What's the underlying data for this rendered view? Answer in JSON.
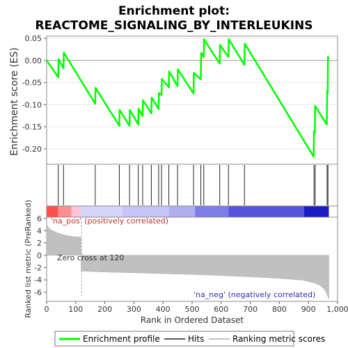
{
  "chart_data": {
    "type": "line",
    "title_line1": "Enrichment plot:",
    "title_line2": "REACTOME_SIGNALING_BY_INTERLEUKINS",
    "es_panel": {
      "ylabel": "Enrichment score (ES)",
      "ylim": [
        -0.235,
        0.055
      ],
      "yticks": [
        0.05,
        0.0,
        -0.05,
        -0.1,
        -0.15,
        -0.2
      ],
      "ytick_labels": [
        "0.05",
        "0.00",
        "-0.05",
        "-0.10",
        "-0.15",
        "-0.20"
      ],
      "zero_line": true,
      "series": [
        {
          "name": "Enrichment profile",
          "color": "#00ff00",
          "x": [
            0,
            40,
            41,
            58,
            59,
            167,
            168,
            250,
            251,
            285,
            286,
            315,
            316,
            330,
            331,
            360,
            361,
            385,
            386,
            395,
            396,
            420,
            421,
            450,
            451,
            505,
            506,
            530,
            531,
            540,
            541,
            595,
            596,
            625,
            626,
            680,
            681,
            918,
            919,
            922,
            923,
            963,
            964,
            966,
            967,
            970
          ],
          "y": [
            0.0,
            -0.038,
            0.003,
            -0.018,
            0.018,
            -0.098,
            -0.062,
            -0.148,
            -0.112,
            -0.148,
            -0.112,
            -0.145,
            -0.109,
            -0.126,
            -0.09,
            -0.12,
            -0.084,
            -0.11,
            -0.074,
            -0.078,
            -0.042,
            -0.061,
            -0.025,
            -0.058,
            -0.02,
            -0.075,
            -0.028,
            -0.043,
            0.017,
            0.008,
            0.048,
            -0.007,
            0.035,
            0.008,
            0.048,
            -0.01,
            0.038,
            -0.218,
            -0.16,
            -0.163,
            -0.103,
            -0.145,
            -0.07,
            -0.075,
            0.008,
            0.003
          ]
        }
      ]
    },
    "hits_panel": {
      "name": "Hits",
      "x": [
        40,
        58,
        167,
        250,
        285,
        315,
        330,
        360,
        385,
        395,
        420,
        450,
        505,
        530,
        540,
        595,
        625,
        680,
        919,
        923,
        964,
        967
      ]
    },
    "colorbar": {
      "segments": [
        {
          "x0": 0,
          "x1": 40,
          "color": "#ff5050"
        },
        {
          "x0": 40,
          "x1": 85,
          "color": "#ff8f8f"
        },
        {
          "x0": 85,
          "x1": 118,
          "color": "#ffc4d8"
        },
        {
          "x0": 118,
          "x1": 260,
          "color": "#d6d6fa"
        },
        {
          "x0": 260,
          "x1": 420,
          "color": "#c4c4f5"
        },
        {
          "x0": 420,
          "x1": 510,
          "color": "#aeaef0"
        },
        {
          "x0": 510,
          "x1": 625,
          "color": "#7c7ceb"
        },
        {
          "x0": 625,
          "x1": 885,
          "color": "#5454dc"
        },
        {
          "x0": 885,
          "x1": 970,
          "color": "#1c1cc4"
        }
      ]
    },
    "rank_panel": {
      "ylabel": "Ranked list metric (PreRanked)",
      "ylim": [
        -7.5,
        6.2
      ],
      "yticks": [
        6,
        4,
        2,
        0,
        -2,
        -4,
        -6
      ],
      "ytick_labels": [
        "6",
        "4",
        "2",
        "0",
        "-2",
        "-4",
        "-6"
      ],
      "series": [
        {
          "name": "Ranking metric scores",
          "color": "#c0c0c0",
          "x": [
            0,
            2,
            10,
            20,
            40,
            60,
            80,
            100,
            118,
            119,
            130,
            200,
            300,
            400,
            500,
            600,
            700,
            800,
            880,
            920,
            940,
            950,
            960,
            965,
            970
          ],
          "y": [
            6.0,
            4.8,
            4.3,
            4.0,
            3.6,
            3.3,
            3.1,
            3.0,
            2.95,
            -2.55,
            -2.6,
            -2.72,
            -2.85,
            -2.98,
            -3.12,
            -3.3,
            -3.5,
            -3.75,
            -4.05,
            -4.5,
            -4.9,
            -5.3,
            -5.9,
            -6.5,
            -7.1
          ]
        }
      ],
      "zero_cross_label": "Zero cross at 120",
      "zero_cross_x": 120,
      "pos_label": "'na_pos' (positively correlated)",
      "neg_label": "'na_neg' (negatively correlated)"
    },
    "x_axis": {
      "label": "Rank in Ordered Dataset",
      "xlim": [
        0,
        1000
      ],
      "ticks": [
        0,
        100,
        200,
        300,
        400,
        500,
        600,
        700,
        800,
        900,
        1000
      ],
      "tick_labels": [
        "0",
        "100",
        "200",
        "300",
        "400",
        "500",
        "600",
        "700",
        "800",
        "900",
        "1,000"
      ]
    },
    "legend": {
      "position": "bottom",
      "items": [
        {
          "label": "Enrichment profile",
          "color": "#00ff00"
        },
        {
          "label": "Hits",
          "color": "#555555"
        },
        {
          "label": "Ranking metric scores",
          "color": "#c0c0c0"
        }
      ]
    }
  }
}
